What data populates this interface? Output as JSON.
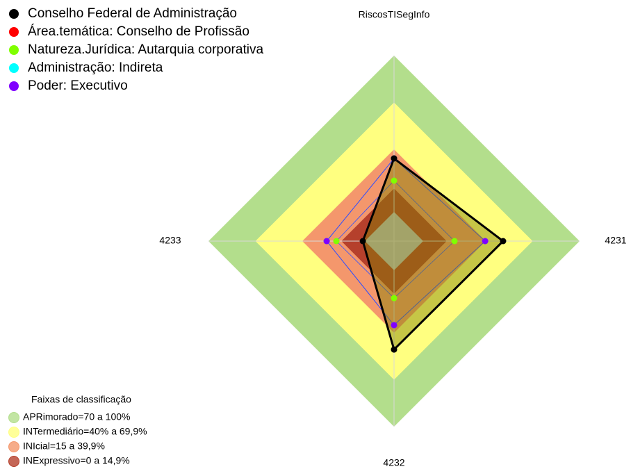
{
  "chart_data": {
    "type": "radar",
    "axes": [
      "RiscosTISegInfo",
      "4231",
      "4232",
      "4233"
    ],
    "rlim": [
      0,
      100
    ],
    "series": [
      {
        "name": "Conselho Federal de Administração",
        "color": "#000000",
        "fill": "#808000",
        "values": [
          34.2,
          51.1,
          50.7,
          1.3
        ]
      },
      {
        "name": "Área.temática: Conselho de Profissão",
        "color": "#ff0000",
        "values": [
          34.2,
          39.6,
          35.1,
          24.4
        ]
      },
      {
        "name": "Natureza.Jurídica: Autarquia corporativa",
        "color": "#80ff00",
        "values": [
          20,
          20,
          17.8,
          18.2
        ]
      },
      {
        "name": "Administração: Indireta",
        "color": "#00ffff",
        "values": [
          34.2,
          39.6,
          35.1,
          24.4
        ]
      },
      {
        "name": "Poder: Executivo",
        "color": "#8000ff",
        "values": [
          34.2,
          39.6,
          35.1,
          24.4
        ]
      }
    ],
    "bands_title": "Faixas de classificação",
    "bands": [
      {
        "name": "APRimorado=70 a 100%",
        "color": "#b3de8c",
        "upper": 100
      },
      {
        "name": "INTermediário=40% a 69,9%",
        "color": "#ffff80",
        "upper": 70
      },
      {
        "name": "INIcial=15 a 39,9%",
        "color": "#f4976c",
        "upper": 40
      },
      {
        "name": "INExpressivo=0 a 14,9%",
        "color": "#b5402c",
        "upper": 15
      }
    ]
  }
}
